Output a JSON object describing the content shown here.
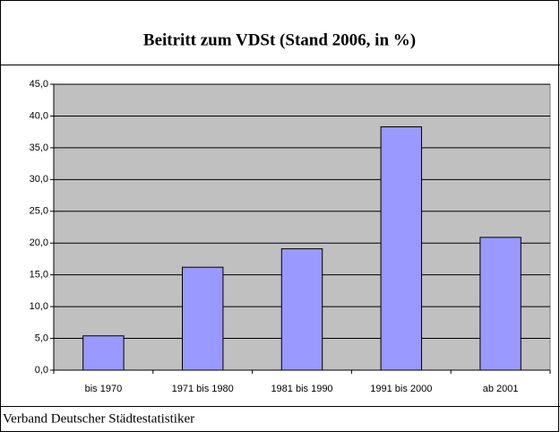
{
  "chart_data": {
    "type": "bar",
    "title": "Beitritt zum VDSt (Stand 2006, in %)",
    "categories": [
      "bis 1970",
      "1971 bis 1980",
      "1981 bis 1990",
      "1991 bis 2000",
      "ab 2001"
    ],
    "values": [
      5.4,
      16.2,
      19.1,
      38.3,
      20.9
    ],
    "color": "#9999ff",
    "ylim": [
      0,
      45
    ],
    "yticks": [
      {
        "value": 0,
        "label": "0,0"
      },
      {
        "value": 5,
        "label": "5,0"
      },
      {
        "value": 10,
        "label": "10,0"
      },
      {
        "value": 15,
        "label": "15,0"
      },
      {
        "value": 20,
        "label": "20,0"
      },
      {
        "value": 25,
        "label": "25,0"
      },
      {
        "value": 30,
        "label": "30,0"
      },
      {
        "value": 35,
        "label": "35,0"
      },
      {
        "value": 40,
        "label": "40,0"
      },
      {
        "value": 45,
        "label": "45,0"
      }
    ],
    "grid": true,
    "source": "Verband Deutscher Städtestatistiker"
  }
}
